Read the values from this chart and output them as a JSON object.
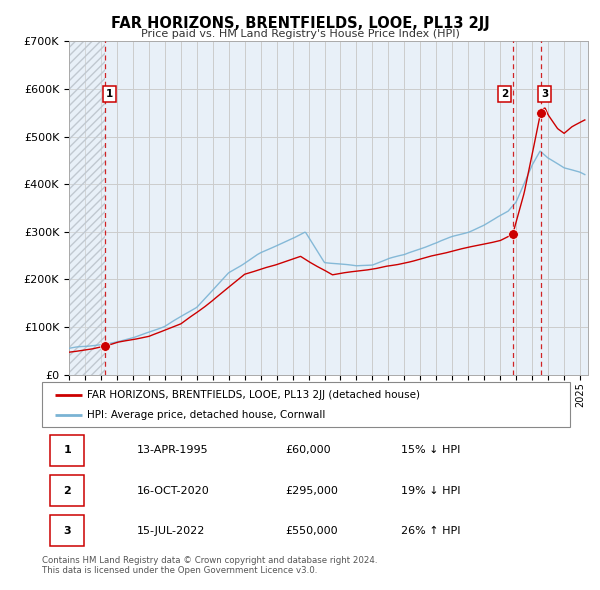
{
  "title": "FAR HORIZONS, BRENTFIELDS, LOOE, PL13 2JJ",
  "subtitle": "Price paid vs. HM Land Registry's House Price Index (HPI)",
  "xlim": [
    1993.0,
    2025.5
  ],
  "ylim": [
    0,
    700000
  ],
  "yticks": [
    0,
    100000,
    200000,
    300000,
    400000,
    500000,
    600000,
    700000
  ],
  "ytick_labels": [
    "£0",
    "£100K",
    "£200K",
    "£300K",
    "£400K",
    "£500K",
    "£600K",
    "£700K"
  ],
  "sale_dates": [
    1995.28,
    2020.79,
    2022.54
  ],
  "sale_prices": [
    60000,
    295000,
    550000
  ],
  "sale_labels": [
    "1",
    "2",
    "3"
  ],
  "hpi_color": "#7ab3d4",
  "price_color": "#cc0000",
  "vline_color": "#cc0000",
  "grid_color": "#cccccc",
  "bg_color": "#e8f0f8",
  "hatch_color": "#c0c8d0",
  "legend_label_price": "FAR HORIZONS, BRENTFIELDS, LOOE, PL13 2JJ (detached house)",
  "legend_label_hpi": "HPI: Average price, detached house, Cornwall",
  "table_data": [
    [
      "1",
      "13-APR-1995",
      "£60,000",
      "15% ↓ HPI"
    ],
    [
      "2",
      "16-OCT-2020",
      "£295,000",
      "19% ↓ HPI"
    ],
    [
      "3",
      "15-JUL-2022",
      "£550,000",
      "26% ↑ HPI"
    ]
  ],
  "footnote": "Contains HM Land Registry data © Crown copyright and database right 2024.\nThis data is licensed under the Open Government Licence v3.0."
}
